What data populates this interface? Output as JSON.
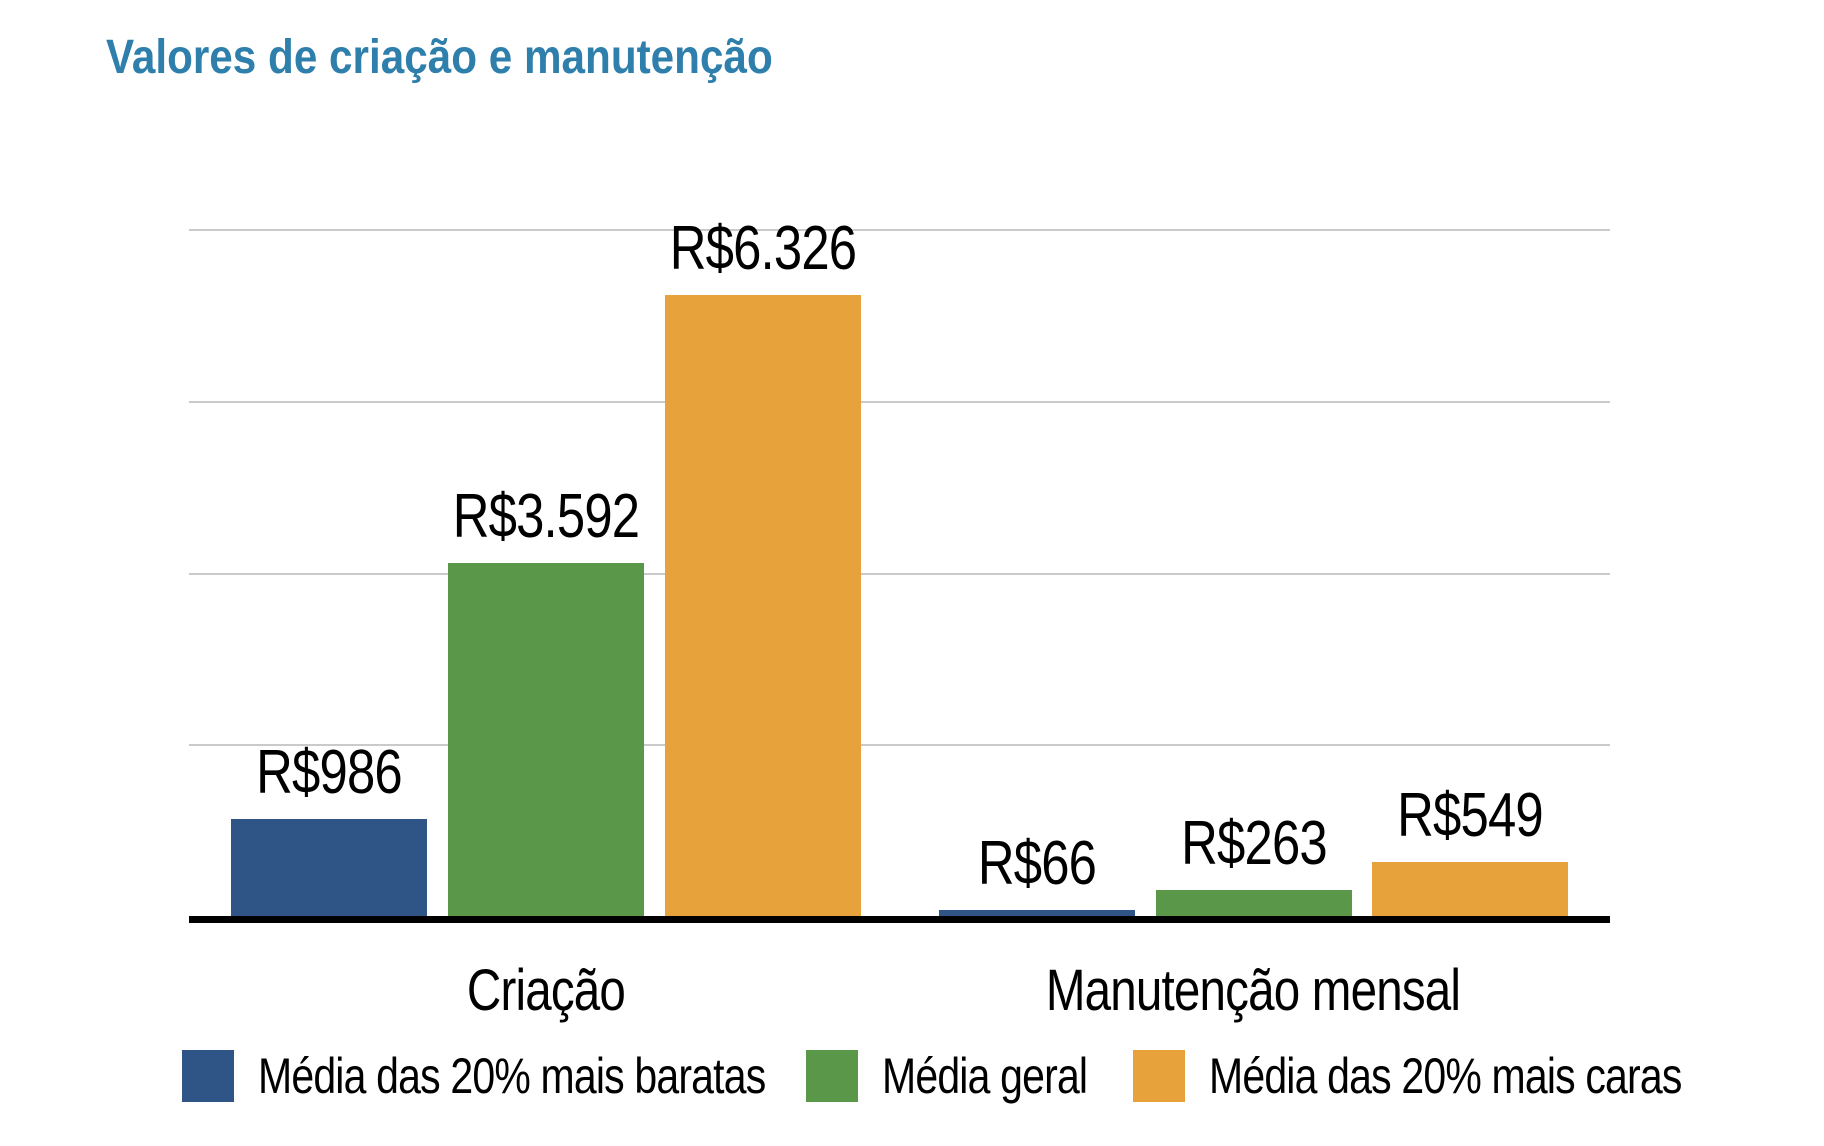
{
  "page": {
    "title": "Valores de criação e manutenção"
  },
  "chart_data": {
    "type": "bar",
    "title": "Valores de criação e manutenção",
    "categories": [
      "Criação",
      "Manutenção mensal"
    ],
    "series": [
      {
        "name": "Média das 20% mais baratas",
        "color": "#2E5586",
        "values": [
          986,
          66
        ],
        "value_labels": [
          "R$986",
          "R$66"
        ]
      },
      {
        "name": "Média geral",
        "color": "#5A9749",
        "values": [
          3592,
          263
        ],
        "value_labels": [
          "R$3.592",
          "R$263"
        ]
      },
      {
        "name": "Média das 20% mais caras",
        "color": "#E8A23C",
        "values": [
          6326,
          549
        ],
        "value_labels": [
          "R$6.326",
          "R$549"
        ]
      }
    ],
    "xlabel": "",
    "ylabel": "",
    "ylim": [
      0,
      7000
    ],
    "gridline_values": [
      1750,
      3500,
      5250,
      7000
    ],
    "grid": true,
    "y_axis_labels_visible": false,
    "legend_position": "bottom",
    "currency": "R$",
    "title_color": "#2E7FAB",
    "gridline_color": "#CACACA",
    "axis_color": "#000000",
    "label_color": "#000000"
  }
}
